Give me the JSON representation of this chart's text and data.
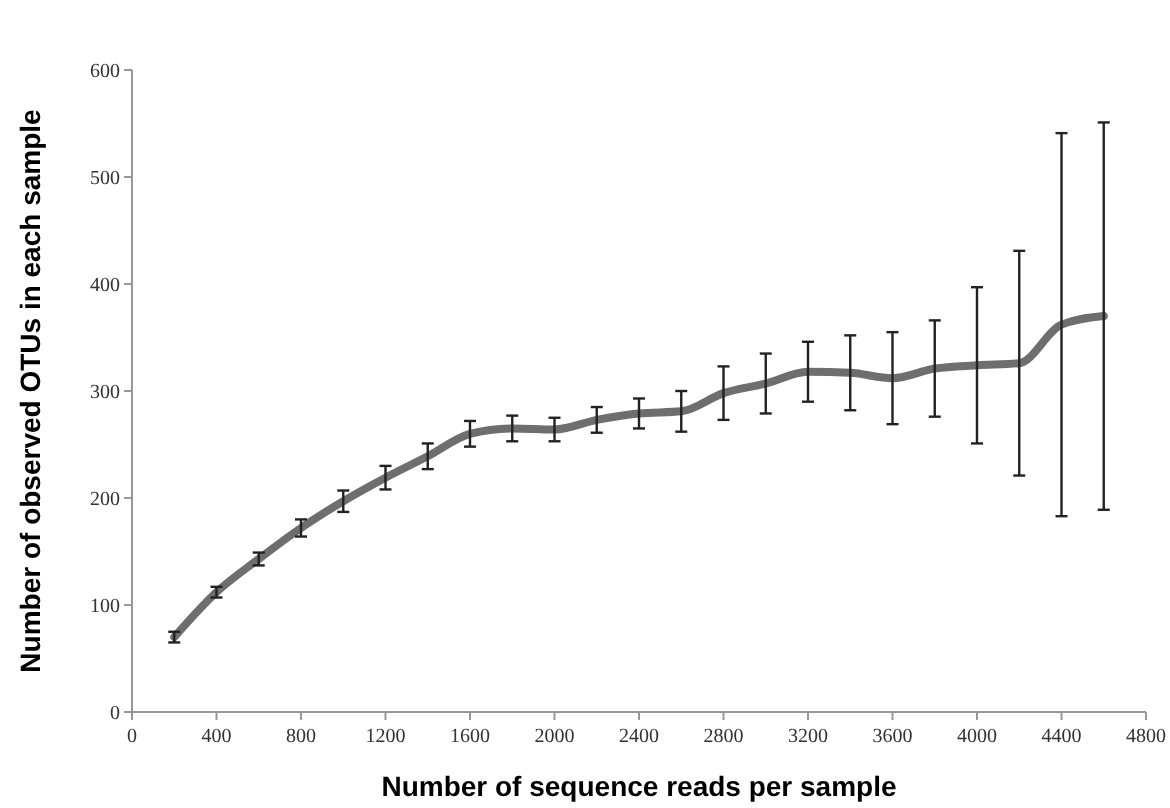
{
  "chart_data": {
    "type": "line",
    "xlabel": "Number of sequence reads per sample",
    "ylabel": "Number of observed OTUs in each sample",
    "x": [
      200,
      400,
      600,
      800,
      1000,
      1200,
      1400,
      1600,
      1800,
      2000,
      2200,
      2400,
      2600,
      2800,
      3000,
      3200,
      3400,
      3600,
      3800,
      4000,
      4200,
      4400,
      4600
    ],
    "series": [
      {
        "color": "#6e6e6e",
        "values": [
          70,
          112,
          143,
          172,
          197,
          219,
          239,
          260,
          265,
          264,
          273,
          279,
          281,
          298,
          307,
          318,
          317,
          312,
          321,
          324,
          326,
          362,
          370
        ],
        "errors": [
          5,
          5,
          6,
          8,
          10,
          11,
          12,
          12,
          12,
          11,
          12,
          14,
          19,
          25,
          28,
          28,
          35,
          43,
          45,
          73,
          105,
          179,
          181
        ]
      }
    ],
    "xlim": [
      0,
      4800
    ],
    "xticks": [
      0,
      400,
      800,
      1200,
      1600,
      2000,
      2400,
      2800,
      3200,
      3600,
      4000,
      4400,
      4800
    ],
    "ylim": [
      0,
      600
    ],
    "yticks": [
      0,
      100,
      200,
      300,
      400,
      500,
      600
    ],
    "grid": false,
    "marker": "none",
    "line_style": "solid"
  }
}
